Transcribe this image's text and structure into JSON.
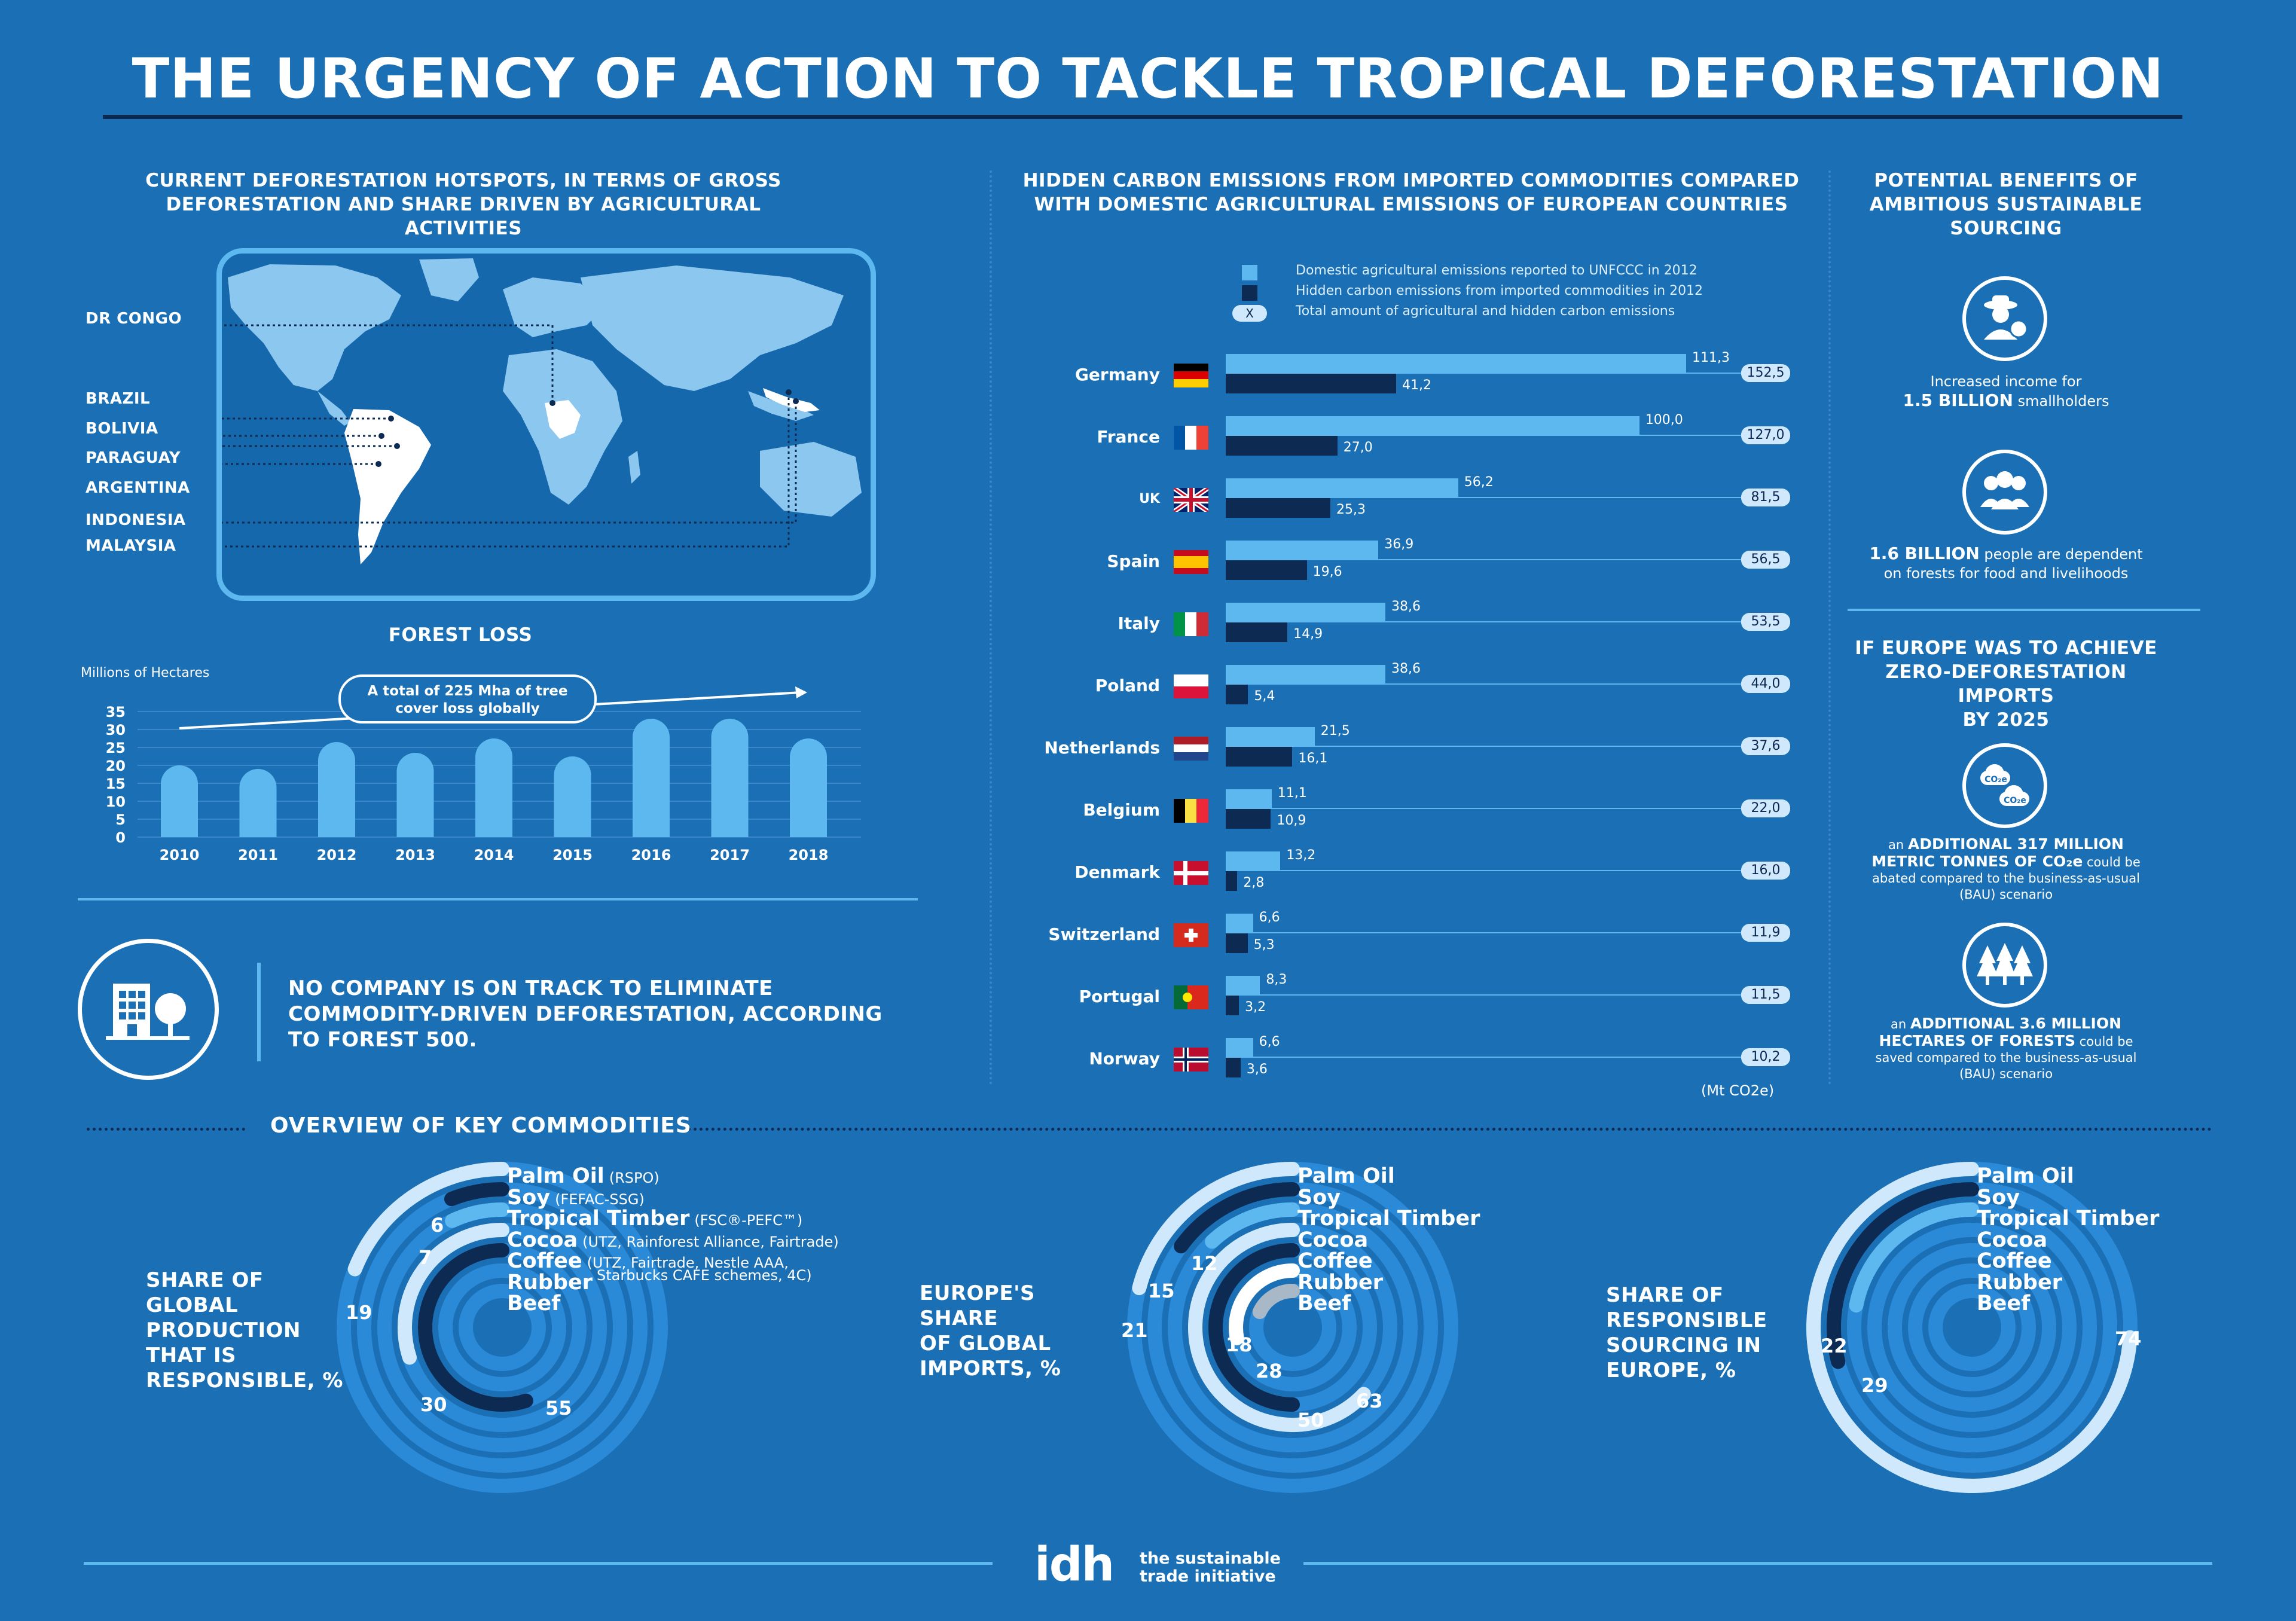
{
  "header": {
    "title": "THE URGENCY OF ACTION TO TACKLE TROPICAL DEFORESTATION"
  },
  "hotspots": {
    "title_line1": "CURRENT DEFORESTATION HOTSPOTS, IN TERMS OF GROSS",
    "title_line2": "DEFORESTATION AND SHARE DRIVEN BY AGRICULTURAL ACTIVITIES",
    "countries": [
      "DR CONGO",
      "BRAZIL",
      "BOLIVIA",
      "PARAGUAY",
      "ARGENTINA",
      "INDONESIA",
      "MALAYSIA"
    ]
  },
  "forest_loss": {
    "title": "FOREST LOSS",
    "unit": "Millions of Hectares",
    "callout_line1": "A total of 225 Mha of tree",
    "callout_line2": "cover loss globally",
    "chart_data": {
      "type": "bar",
      "title": "FOREST LOSS",
      "ylabel": "Millions of Hectares",
      "categories": [
        "2010",
        "2011",
        "2012",
        "2013",
        "2014",
        "2015",
        "2016",
        "2017",
        "2018"
      ],
      "values": [
        20,
        19,
        26.5,
        23.5,
        27.5,
        22.5,
        33,
        33,
        27.5
      ],
      "yticks": [
        "35",
        "30",
        "25",
        "20",
        "15",
        "10",
        "5",
        "0"
      ],
      "ylim": [
        0,
        35
      ]
    }
  },
  "forest500": {
    "line1": "NO COMPANY IS ON TRACK TO ELIMINATE",
    "line2": "COMMODITY-DRIVEN DEFORESTATION, ACCORDING",
    "line3": "TO FOREST 500."
  },
  "emissions": {
    "title_line1": "HIDDEN CARBON EMISSIONS FROM IMPORTED COMMODITIES COMPARED",
    "title_line2": "WITH DOMESTIC AGRICULTURAL EMISSIONS OF EUROPEAN COUNTRIES",
    "legend": {
      "domestic": "Domestic agricultural emissions reported to UNFCCC in 2012",
      "hidden": "Hidden carbon emissions from imported commodities in 2012",
      "total_marker": "X",
      "total": "Total amount of agricultural and hidden carbon emissions"
    },
    "unit": "(Mt CO2e)",
    "colors": {
      "domestic": "#5cb8ee",
      "hidden": "#0c2a52"
    },
    "chart_data": {
      "type": "bar",
      "orientation": "horizontal",
      "categories": [
        "Germany",
        "France",
        "UK",
        "Spain",
        "Italy",
        "Poland",
        "Netherlands",
        "Belgium",
        "Denmark",
        "Switzerland",
        "Portugal",
        "Norway"
      ],
      "series": [
        {
          "name": "Domestic agricultural emissions reported to UNFCCC in 2012",
          "values": [
            111.3,
            100.0,
            56.2,
            36.9,
            38.6,
            38.6,
            21.5,
            11.1,
            13.2,
            6.6,
            8.3,
            6.6
          ],
          "labels": [
            "111,3",
            "100,0",
            "56,2",
            "36,9",
            "38,6",
            "38,6",
            "21,5",
            "11,1",
            "13,2",
            "6,6",
            "8,3",
            "6,6"
          ]
        },
        {
          "name": "Hidden carbon emissions from imported commodities in 2012",
          "values": [
            41.2,
            27.0,
            25.3,
            19.6,
            14.9,
            5.4,
            16.1,
            10.9,
            2.8,
            5.3,
            3.2,
            3.6
          ],
          "labels": [
            "41,2",
            "27,0",
            "25,3",
            "19,6",
            "14,9",
            "5,4",
            "16,1",
            "10,9",
            "2,8",
            "5,3",
            "3,2",
            "3,6"
          ]
        }
      ],
      "totals": [
        152.5,
        127.0,
        81.5,
        56.5,
        53.5,
        44.0,
        37.6,
        22.0,
        16.0,
        11.9,
        11.5,
        10.2
      ],
      "total_labels": [
        "152,5",
        "127,0",
        "81,5",
        "56,5",
        "53,5",
        "44,0",
        "37,6",
        "22,0",
        "16,0",
        "11,9",
        "11,5",
        "10,2"
      ],
      "xlim": [
        0,
        111.3
      ]
    }
  },
  "benefits": {
    "title_line1": "POTENTIAL BENEFITS OF",
    "title_line2": "AMBITIOUS SUSTAINABLE",
    "title_line3": "SOURCING",
    "b1_line1": "Increased income for",
    "b1_bold": "1.5 BILLION",
    "b1_rest": " smallholders",
    "b2_bold": "1.6 BILLION",
    "b2_rest": " people are dependent",
    "b2_line2": "on forests for food and livelihoods",
    "europe_title_line1": "IF EUROPE WAS TO ACHIEVE",
    "europe_title_line2": "ZERO-DEFORESTATION IMPORTS",
    "europe_title_line3": "BY 2025",
    "co2_icon_text": "CO₂e",
    "b3_pre": "an ",
    "b3_bold1": "ADDITIONAL  317 MILLION",
    "b3_bold2": "METRIC TONNES OF CO₂e",
    "b3_rest": " could be",
    "b3_line3": "abated compared to the business-as-usual",
    "b3_line4": "(BAU) scenario",
    "b4_pre": "an ",
    "b4_bold1": "ADDITIONAL 3.6 MILLION",
    "b4_bold2": "HECTARES OF FORESTS",
    "b4_rest": " could be",
    "b4_line3": "saved compared to the business-as-usual",
    "b4_line4": "(BAU) scenario"
  },
  "commodities": {
    "title": "OVERVIEW OF KEY COMMODITIES",
    "names": [
      "Palm Oil",
      "Soy",
      "Tropical Timber",
      "Cocoa",
      "Coffee",
      "Rubber",
      "Beef"
    ],
    "schemes": {
      "palm": "(RSPO)",
      "soy": "(FEFAC-SSG)",
      "timber": "(FSC®-PEFC™)",
      "cocoa": "(UTZ, Rainforest Alliance, Fairtrade)",
      "coffee1": "(UTZ, Fairtrade, Nestle AAA,",
      "coffee2": "Starbucks CAFE schemes, 4C)"
    },
    "chart_data": [
      {
        "type": "radial-bar",
        "title": "SHARE OF GLOBAL PRODUCTION THAT IS RESPONSIBLE, %",
        "categories": [
          "Palm Oil",
          "Soy",
          "Tropical Timber",
          "Cocoa",
          "Coffee",
          "Rubber",
          "Beef"
        ],
        "values": [
          19,
          6,
          7,
          30,
          55,
          null,
          null
        ],
        "labels": [
          "19",
          "6",
          "7",
          "30",
          "55"
        ]
      },
      {
        "type": "radial-bar",
        "title": "EUROPE'S SHARE OF GLOBAL IMPORTS, %",
        "categories": [
          "Palm Oil",
          "Soy",
          "Tropical Timber",
          "Cocoa",
          "Coffee",
          "Rubber",
          "Beef"
        ],
        "values": [
          21,
          15,
          12,
          63,
          50,
          28,
          18
        ],
        "labels": [
          "21",
          "15",
          "12",
          "63",
          "50",
          "28",
          "18"
        ]
      },
      {
        "type": "radial-bar",
        "title": "SHARE OF RESPONSIBLE SOURCING IN EUROPE, %",
        "categories": [
          "Palm Oil",
          "Soy",
          "Tropical Timber",
          "Cocoa",
          "Coffee",
          "Rubber",
          "Beef"
        ],
        "values": [
          74,
          29,
          22,
          null,
          null,
          null,
          null
        ],
        "labels": [
          "74",
          "29",
          "22"
        ]
      }
    ],
    "donut1_label": [
      "SHARE OF",
      "GLOBAL",
      "PRODUCTION",
      "THAT IS",
      "RESPONSIBLE, %"
    ],
    "donut2_label": [
      "EUROPE'S",
      "SHARE",
      "OF GLOBAL",
      "IMPORTS, %"
    ],
    "donut3_label": [
      "SHARE OF",
      "RESPONSIBLE",
      "SOURCING IN",
      "EUROPE, %"
    ]
  },
  "footer": {
    "logo": "idh",
    "tagline1": "the sustainable",
    "tagline2": "trade initiative"
  }
}
